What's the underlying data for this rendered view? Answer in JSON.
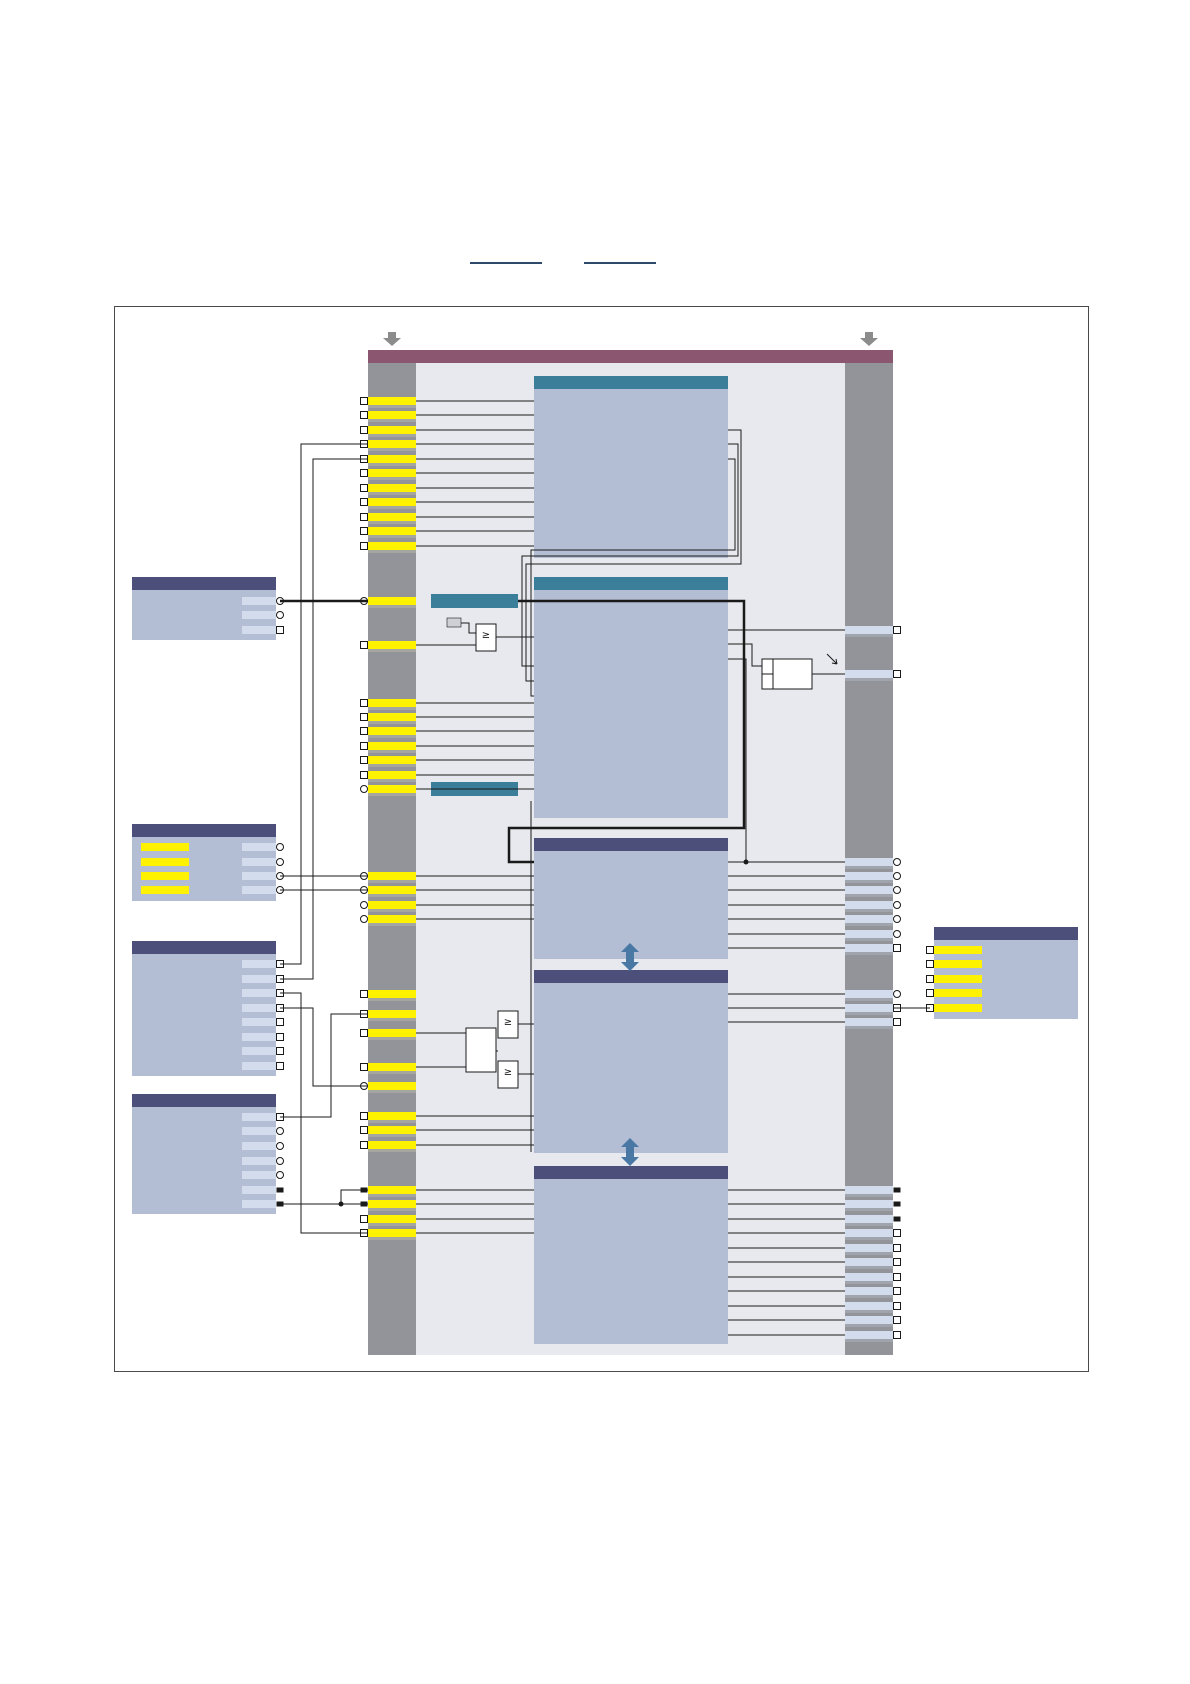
{
  "header_links": [
    {
      "text": ""
    },
    {
      "text": ""
    }
  ],
  "colors": {
    "frame_header": "#8b5670",
    "io_column": "#939499",
    "block_area": "#e8e9ee",
    "block_body": "#b3bdd4",
    "block_header_teal": "#3b7e99",
    "block_header_navy": "#4c4f7a",
    "port_yellow": "#fff200",
    "port_light": "#d2dcec",
    "arrow_gray": "#8c8c8c",
    "double_arrow": "#4a78a4",
    "line": "#1a1a1a"
  },
  "icons": {
    "input_arrow": "down-arrow-icon",
    "exchange": "double-arrow-icon",
    "logic_gate": "or-gate-icon"
  },
  "gates": [
    {
      "symbol": "≥"
    },
    {
      "symbol": "≥"
    },
    {
      "symbol": "≥"
    }
  ]
}
